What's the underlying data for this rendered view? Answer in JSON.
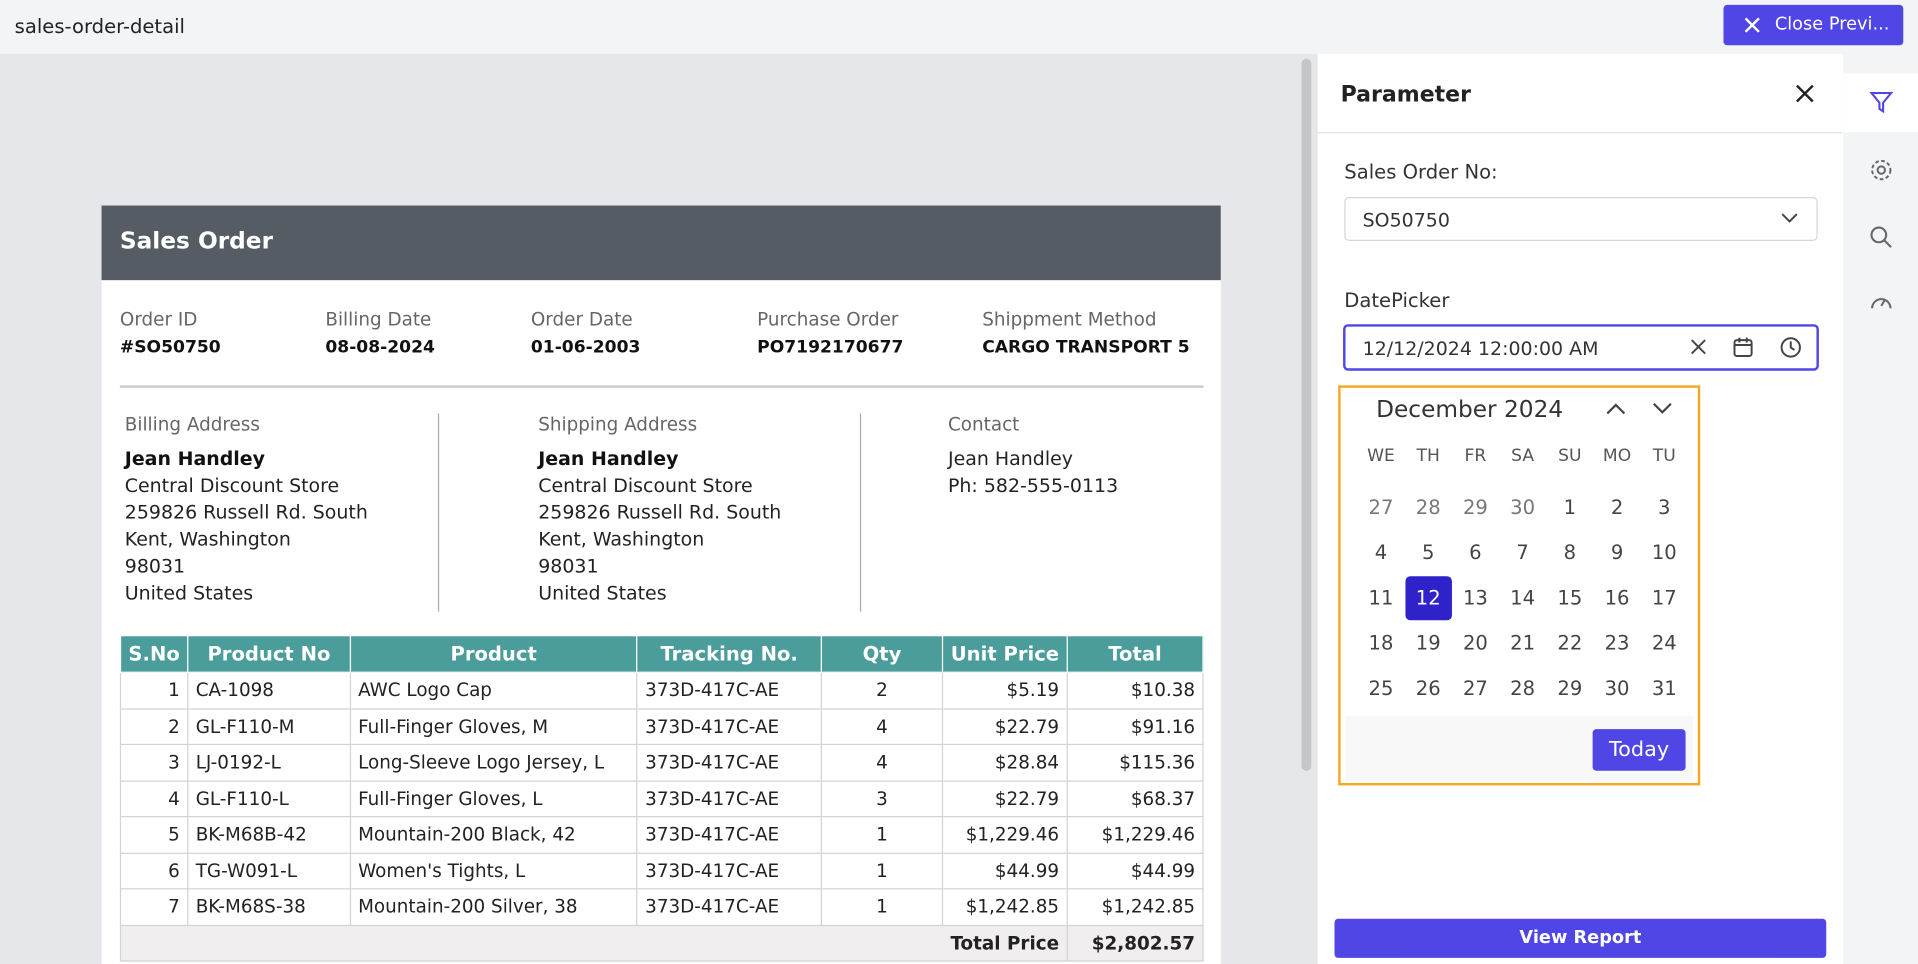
{
  "header": {
    "title": "sales-order-detail",
    "close_button": "Close Previ..."
  },
  "report": {
    "title": "Sales Order",
    "fields": [
      {
        "label": "Order ID",
        "value": "#SO50750"
      },
      {
        "label": "Billing Date",
        "value": "08-08-2024"
      },
      {
        "label": "Order Date",
        "value": "01-06-2003"
      },
      {
        "label": "Purchase Order",
        "value": "PO7192170677"
      },
      {
        "label": "Shippment Method",
        "value": "CARGO TRANSPORT 5"
      }
    ],
    "addresses": [
      {
        "label": "Billing Address",
        "lines": [
          "Jean Handley",
          "Central Discount Store",
          "259826 Russell Rd. South",
          "Kent, Washington",
          "98031",
          "United States"
        ]
      },
      {
        "label": "Shipping Address",
        "lines": [
          "Jean Handley",
          "Central Discount Store",
          "259826 Russell Rd. South",
          "Kent, Washington",
          "98031",
          "United States"
        ]
      },
      {
        "label": "Contact",
        "lines": [
          "Jean Handley",
          "Ph: 582-555-0113"
        ]
      }
    ],
    "table": {
      "headers": [
        "S.No",
        "Product No",
        "Product",
        "Tracking No.",
        "Qty",
        "Unit Price",
        "Total"
      ],
      "rows": [
        [
          1,
          "CA-1098",
          "AWC Logo Cap",
          "373D-417C-AE",
          2,
          "$5.19",
          "$10.38"
        ],
        [
          2,
          "GL-F110-M",
          "Full-Finger Gloves, M",
          "373D-417C-AE",
          4,
          "$22.79",
          "$91.16"
        ],
        [
          3,
          "LJ-0192-L",
          "Long-Sleeve Logo Jersey, L",
          "373D-417C-AE",
          4,
          "$28.84",
          "$115.36"
        ],
        [
          4,
          "GL-F110-L",
          "Full-Finger Gloves, L",
          "373D-417C-AE",
          3,
          "$22.79",
          "$68.37"
        ],
        [
          5,
          "BK-M68B-42",
          "Mountain-200 Black, 42",
          "373D-417C-AE",
          1,
          "$1,229.46",
          "$1,229.46"
        ],
        [
          6,
          "TG-W091-L",
          "Women's Tights, L",
          "373D-417C-AE",
          1,
          "$44.99",
          "$44.99"
        ],
        [
          7,
          "BK-M68S-38",
          "Mountain-200 Silver, 38",
          "373D-417C-AE",
          1,
          "$1,242.85",
          "$1,242.85"
        ]
      ],
      "total_label": "Total Price",
      "total_value": "$2,802.57"
    }
  },
  "panel": {
    "title": "Parameter",
    "sales_order_label": "Sales Order No:",
    "sales_order_value": "SO50750",
    "datepicker_label": "DatePicker",
    "datepicker_value": "12/12/2024 12:00:00 AM",
    "calendar": {
      "month": "December 2024",
      "weekdays": [
        "WE",
        "TH",
        "FR",
        "SA",
        "SU",
        "MO",
        "TU"
      ],
      "prev_month_days": [
        27,
        28,
        29,
        30
      ],
      "days": [
        1,
        2,
        3,
        4,
        5,
        6,
        7,
        8,
        9,
        10,
        11,
        12,
        13,
        14,
        15,
        16,
        17,
        18,
        19,
        20,
        21,
        22,
        23,
        24,
        25,
        26,
        27,
        28,
        29,
        30,
        31
      ],
      "selected_day": 12,
      "today_button": "Today"
    },
    "view_report": "View Report"
  }
}
